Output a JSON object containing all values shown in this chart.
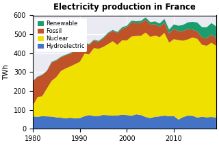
{
  "title": "Electricity production in France",
  "ylabel": "TWh",
  "xlim": [
    1980,
    2019
  ],
  "ylim": [
    0,
    600
  ],
  "yticks": [
    0,
    100,
    200,
    300,
    400,
    500,
    600
  ],
  "xticks": [
    1980,
    1990,
    2000,
    2010
  ],
  "years": [
    1980,
    1981,
    1982,
    1983,
    1984,
    1985,
    1986,
    1987,
    1988,
    1989,
    1990,
    1991,
    1992,
    1993,
    1994,
    1995,
    1996,
    1997,
    1998,
    1999,
    2000,
    2001,
    2002,
    2003,
    2004,
    2005,
    2006,
    2007,
    2008,
    2009,
    2010,
    2011,
    2012,
    2013,
    2014,
    2015,
    2016,
    2017,
    2018,
    2019
  ],
  "hydroelectric": [
    65,
    63,
    66,
    65,
    64,
    60,
    58,
    54,
    58,
    54,
    56,
    66,
    72,
    67,
    67,
    73,
    71,
    69,
    70,
    74,
    72,
    68,
    76,
    72,
    62,
    56,
    63,
    65,
    69,
    66,
    67,
    48,
    62,
    69,
    68,
    59,
    63,
    60,
    62,
    59
  ],
  "nuclear": [
    57,
    103,
    106,
    148,
    189,
    213,
    248,
    265,
    272,
    288,
    298,
    331,
    322,
    360,
    356,
    360,
    377,
    394,
    374,
    394,
    395,
    420,
    415,
    420,
    447,
    430,
    430,
    420,
    438,
    390,
    407,
    421,
    404,
    404,
    415,
    417,
    381,
    379,
    393,
    380
  ],
  "fossil": [
    128,
    108,
    112,
    92,
    98,
    88,
    72,
    70,
    68,
    70,
    65,
    55,
    50,
    40,
    38,
    45,
    55,
    55,
    62,
    62,
    70,
    75,
    68,
    68,
    68,
    65,
    60,
    55,
    55,
    48,
    55,
    48,
    52,
    54,
    42,
    38,
    40,
    40,
    44,
    40
  ],
  "renewable": [
    2,
    2,
    2,
    2,
    3,
    3,
    3,
    3,
    3,
    3,
    4,
    4,
    4,
    4,
    4,
    5,
    5,
    5,
    6,
    7,
    8,
    9,
    10,
    11,
    12,
    13,
    15,
    17,
    19,
    21,
    23,
    28,
    32,
    36,
    41,
    48,
    53,
    58,
    60,
    63
  ],
  "colors": {
    "hydroelectric": "#4472c4",
    "nuclear": "#f0e000",
    "fossil": "#c0522a",
    "renewable": "#1a9e6e"
  },
  "bg_color": "#eaeaf2",
  "grid_color": "white"
}
